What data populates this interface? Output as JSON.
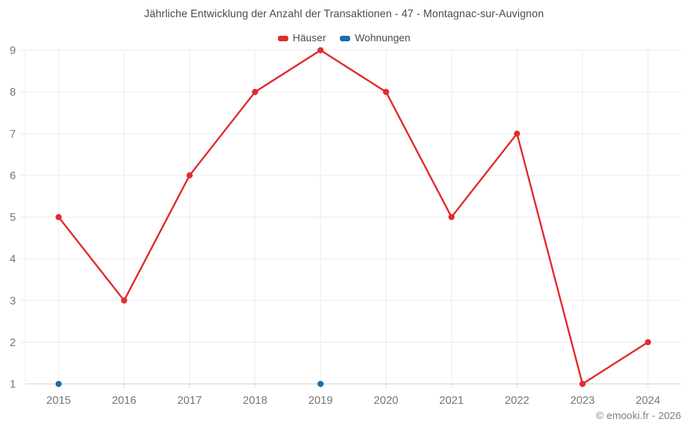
{
  "title": "Jährliche Entwicklung der Anzahl der Transaktionen - 47 - Montagnac-sur-Auvignon",
  "legend": [
    {
      "label": "Häuser",
      "color": "#e12b2f"
    },
    {
      "label": "Wohnungen",
      "color": "#1b6ea6"
    }
  ],
  "footer": "© emooki.fr - 2026",
  "colors": {
    "grid": "#e9e9e9",
    "axis": "#d8d8d8",
    "tick_label": "#757575",
    "background": "#ffffff"
  },
  "chart_data": {
    "type": "line",
    "x": [
      2015,
      2016,
      2017,
      2018,
      2019,
      2020,
      2021,
      2022,
      2023,
      2024
    ],
    "series": [
      {
        "name": "Häuser",
        "color": "#e12b2f",
        "values": [
          5,
          3,
          6,
          8,
          9,
          8,
          5,
          7,
          1,
          2
        ]
      },
      {
        "name": "Wohnungen",
        "color": "#1b6ea6",
        "values": [
          1,
          null,
          null,
          null,
          1,
          null,
          null,
          null,
          null,
          null
        ]
      }
    ],
    "title": "Jährliche Entwicklung der Anzahl der Transaktionen - 47 - Montagnac-sur-Auvignon",
    "xlabel": "",
    "ylabel": "",
    "ylim": [
      1,
      9
    ],
    "yticks": [
      1,
      2,
      3,
      4,
      5,
      6,
      7,
      8,
      9
    ],
    "grid": true,
    "legend_position": "top",
    "connect_nulls": false
  }
}
